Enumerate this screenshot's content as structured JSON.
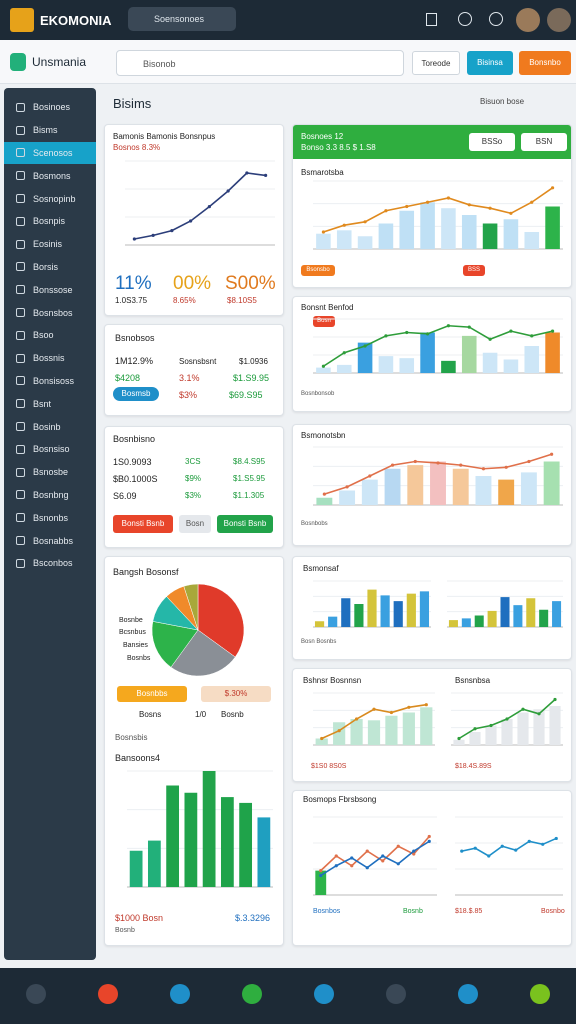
{
  "topbar": {
    "brand": "EKOMONIA",
    "search": "Soensonoes"
  },
  "appbar": {
    "title": "Unsmania",
    "search": "Bisonob",
    "buttons": [
      "Toreode",
      "Bisinsa",
      "Bonsnbo"
    ]
  },
  "sidebar": {
    "items": [
      "Bosinoes",
      "Bisms",
      "Scenosos",
      "Bosmons",
      "Sosnopinb",
      "Bosnpis",
      "Eosinis",
      "Borsis",
      "Bonssose",
      "Bosnsbos",
      "Bsoo",
      "Bossnis",
      "Bonsisoss",
      "Bsnt",
      "Bosinb",
      "Bosnsiso",
      "Bsnosbe",
      "Bosnbng",
      "Bsnonbs",
      "Bosnabbs",
      "Bsconbos"
    ],
    "active": 2
  },
  "main": {
    "title": "Bisims",
    "filter": "Bisuon bose"
  },
  "cards": {
    "trend": {
      "title": "Bamonis Bamonis Bonsnpus",
      "subtitle": "Bosnos 8.3%",
      "kpis": [
        {
          "value": "11%",
          "sub": "1.0S3.75"
        },
        {
          "value": "00%",
          "sub": "8.65%"
        },
        {
          "value": "S00%",
          "sub": "$8.10S5"
        }
      ]
    },
    "stats": {
      "title": "Bsnobsos",
      "rows": [
        [
          "1M12.9%",
          "Sosnsbsnt",
          "$1.0936"
        ],
        [
          "$4208",
          "3.1%",
          "$1.S9.95"
        ]
      ],
      "button": "Bosmsb",
      "extra": [
        "$3%",
        "$69.S95"
      ]
    },
    "table": {
      "title": "Bosnbisno",
      "rows": [
        [
          "1S0.9093",
          "3CS",
          "$8.4.S95"
        ],
        [
          "$B0.1000S",
          "$9%",
          "$1.S5.95"
        ],
        [
          "S6.09",
          "$3%",
          "$1.1.305"
        ]
      ],
      "buttons": [
        "Bonsti Bsnb",
        "Bosn",
        "Bonsti Bsnb"
      ]
    },
    "pie": {
      "title": "Bangsh Bosonsf",
      "labels": [
        "Bosnbe",
        "Bcsnbus",
        "Bansies",
        "Bosnbs"
      ],
      "buttons": [
        "Bosnbbs",
        "$.30%"
      ],
      "row": [
        "Bosns",
        "1/0",
        "Bosnb"
      ],
      "subheading": "Bosnsbis",
      "chart_title": "Bansoons4",
      "footer": [
        "$1000 Bosn",
        "$.3.3296",
        "Bosnb"
      ]
    },
    "r1": {
      "title": "Bosnoes 12",
      "subtitle": "Bonso 3.3 8.5 $ 1.S8",
      "buttons": [
        "BSSo",
        "BSN"
      ],
      "chart_title": "Bsmarotsba",
      "tags": [
        "Bsonsbo",
        "BSS"
      ]
    },
    "r2": {
      "title": "Bonsnt Benfod",
      "tag": "Bosn",
      "footer": "Bosnbonsob"
    },
    "r3": {
      "title": "Bsmonotsbn",
      "footer": "Bosnbobs"
    },
    "r4": {
      "title": "Bsmonsaf",
      "footer": "Bosn Bosnbs"
    },
    "r5": {
      "titles": [
        "Bshnsr Bosnnsn",
        "Bsnsnbsa"
      ],
      "footer": [
        "$1S0 8S0S",
        "$18.4S.89S"
      ]
    },
    "r6": {
      "title": "Bosmops Fbrsbsong",
      "footer": [
        "Bosnbos",
        "Bosnb",
        "$18.$.85",
        "Bosnbo"
      ]
    }
  },
  "charts": {
    "trend": {
      "type": "line",
      "ylim": [
        0,
        70
      ],
      "series": [
        {
          "kind": "line",
          "color": "#2c3e7a",
          "values": [
            5,
            8,
            12,
            20,
            32,
            45,
            60,
            58
          ]
        }
      ]
    },
    "r1": {
      "type": "combo",
      "ylim": [
        0,
        80
      ],
      "series": [
        {
          "kind": "bar",
          "colors": [
            "#cde6f7",
            "#cde6f7",
            "#cde6f7",
            "#bfe0f5",
            "#bfe0f5",
            "#bfe0f5",
            "#cde6f7",
            "#bfe0f5",
            "#22a34a",
            "#bfe0f5",
            "#cde6f7",
            "#2db34a"
          ],
          "values": [
            18,
            22,
            15,
            30,
            45,
            55,
            48,
            40,
            30,
            35,
            20,
            50
          ]
        },
        {
          "kind": "line",
          "color": "#e08a1e",
          "values": [
            20,
            28,
            32,
            45,
            50,
            55,
            60,
            52,
            48,
            42,
            55,
            72
          ]
        }
      ]
    },
    "r2": {
      "type": "combo",
      "ylim": [
        0,
        80
      ],
      "series": [
        {
          "kind": "bar",
          "colors": [
            "#cde6f7",
            "#cde6f7",
            "#3aa0e0",
            "#cde6f7",
            "#cde6f7",
            "#3aa0e0",
            "#22a34a",
            "#a6d8a0",
            "#cde6f7",
            "#cde6f7",
            "#cde6f7",
            "#ef8a2a"
          ],
          "values": [
            8,
            12,
            45,
            25,
            22,
            60,
            18,
            55,
            30,
            20,
            40,
            60
          ]
        },
        {
          "kind": "line",
          "color": "#2e9d3a",
          "values": [
            10,
            30,
            40,
            55,
            60,
            58,
            70,
            68,
            50,
            62,
            55,
            62
          ]
        }
      ]
    },
    "r3": {
      "type": "combo",
      "ylim": [
        0,
        80
      ],
      "series": [
        {
          "kind": "bar",
          "colors": [
            "#a6e0c0",
            "#cde6f7",
            "#cde6f7",
            "#b7d8f2",
            "#f5c89a",
            "#f3c0c0",
            "#f5c89a",
            "#cde6f7",
            "#f0a64a",
            "#cde6f7",
            "#a6e0b0"
          ],
          "values": [
            10,
            20,
            35,
            50,
            55,
            60,
            50,
            40,
            35,
            45,
            60
          ]
        },
        {
          "kind": "line",
          "color": "#e0704a",
          "values": [
            15,
            25,
            40,
            55,
            60,
            58,
            55,
            50,
            52,
            60,
            70
          ]
        }
      ]
    },
    "r4a": {
      "type": "combo",
      "ylim": [
        0,
        80
      ],
      "series": [
        {
          "kind": "bar",
          "colors": [
            "#d4c43a",
            "#3aa0e0",
            "#1f6fbf",
            "#22a34a",
            "#d4c43a",
            "#3aa0e0",
            "#1f6fbf",
            "#d4c43a",
            "#3aa0e0"
          ],
          "values": [
            10,
            18,
            50,
            40,
            65,
            55,
            45,
            58,
            62
          ]
        }
      ]
    },
    "r4b": {
      "type": "combo",
      "ylim": [
        0,
        80
      ],
      "series": [
        {
          "kind": "bar",
          "colors": [
            "#d4c43a",
            "#3aa0e0",
            "#22a34a",
            "#d4c43a",
            "#1f6fbf",
            "#3aa0e0",
            "#d4c43a",
            "#22a34a",
            "#3aa0e0"
          ],
          "values": [
            12,
            15,
            20,
            28,
            52,
            38,
            50,
            30,
            45
          ]
        }
      ]
    },
    "r5a": {
      "type": "combo",
      "ylim": [
        0,
        80
      ],
      "series": [
        {
          "kind": "bar",
          "colors": [
            "#bfe6d4",
            "#bfe6d4",
            "#bfe6d4",
            "#bfe6d4",
            "#bfe6d4",
            "#bfe6d4",
            "#bfe6d4"
          ],
          "values": [
            10,
            35,
            40,
            38,
            45,
            50,
            58
          ]
        },
        {
          "kind": "line",
          "color": "#d98a1e",
          "values": [
            10,
            22,
            40,
            55,
            50,
            58,
            62
          ]
        }
      ]
    },
    "r5b": {
      "type": "combo",
      "ylim": [
        0,
        80
      ],
      "series": [
        {
          "kind": "bar",
          "colors": [
            "#e5e8ec",
            "#e5e8ec",
            "#e5e8ec",
            "#e5e8ec",
            "#e5e8ec",
            "#e5e8ec",
            "#e5e8ec"
          ],
          "values": [
            8,
            20,
            30,
            40,
            50,
            55,
            60
          ]
        },
        {
          "kind": "line",
          "color": "#2e9d3a",
          "values": [
            10,
            25,
            30,
            40,
            55,
            48,
            70
          ]
        }
      ]
    },
    "r6a": {
      "type": "combo",
      "ylim": [
        0,
        80
      ],
      "series": [
        {
          "kind": "bar",
          "colors": [
            "#2db34a"
          ],
          "values": [
            25
          ]
        },
        {
          "kind": "line",
          "color": "#e0704a",
          "values": [
            25,
            40,
            30,
            45,
            35,
            50,
            42,
            60
          ]
        },
        {
          "kind": "line",
          "color": "#1f6fbf",
          "values": [
            20,
            30,
            38,
            28,
            40,
            32,
            45,
            55
          ]
        }
      ]
    },
    "r6b": {
      "type": "combo",
      "ylim": [
        0,
        80
      ],
      "series": [
        {
          "kind": "line",
          "color": "#1f8fc9",
          "values": [
            45,
            48,
            40,
            50,
            46,
            55,
            52,
            58
          ]
        }
      ]
    },
    "pie": {
      "type": "pie",
      "values": [
        35,
        25,
        18,
        10,
        7,
        5
      ],
      "colors": [
        "#e03a2a",
        "#8a8f96",
        "#2db34a",
        "#25b7a8",
        "#f08a2a",
        "#a8a83a"
      ]
    },
    "bars": {
      "type": "combo",
      "ylim": [
        0,
        80
      ],
      "series": [
        {
          "kind": "bar",
          "colors": [
            "#22b07a",
            "#22b07a",
            "#1fa34a",
            "#1fa34a",
            "#22a34a",
            "#1fa34a",
            "#1fa34a",
            "#1f9fc0"
          ],
          "values": [
            25,
            32,
            70,
            65,
            80,
            62,
            58,
            48
          ]
        }
      ]
    }
  }
}
